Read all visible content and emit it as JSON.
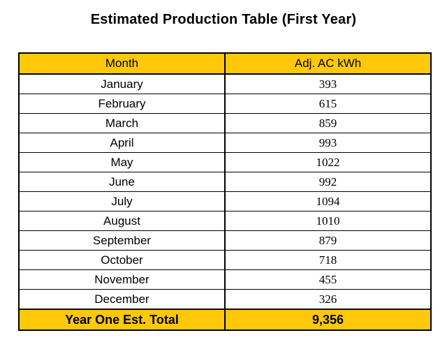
{
  "chart_data": {
    "type": "table",
    "title": "Estimated Production Table (First Year)",
    "columns": [
      "Month",
      "Adj. AC kWh"
    ],
    "rows": [
      [
        "January",
        "393"
      ],
      [
        "February",
        "615"
      ],
      [
        "March",
        "859"
      ],
      [
        "April",
        "993"
      ],
      [
        "May",
        "1022"
      ],
      [
        "June",
        "992"
      ],
      [
        "July",
        "1094"
      ],
      [
        "August",
        "1010"
      ],
      [
        "September",
        "879"
      ],
      [
        "October",
        "718"
      ],
      [
        "November",
        "455"
      ],
      [
        "December",
        "326"
      ]
    ],
    "total_row": [
      "Year One Est. Total",
      "9,356"
    ],
    "layout_hints": {
      "header_bg": "#FFC90A",
      "total_bg": "#FFC90A",
      "border_color": "#000000",
      "value_alignment": "right",
      "grid": true
    }
  }
}
